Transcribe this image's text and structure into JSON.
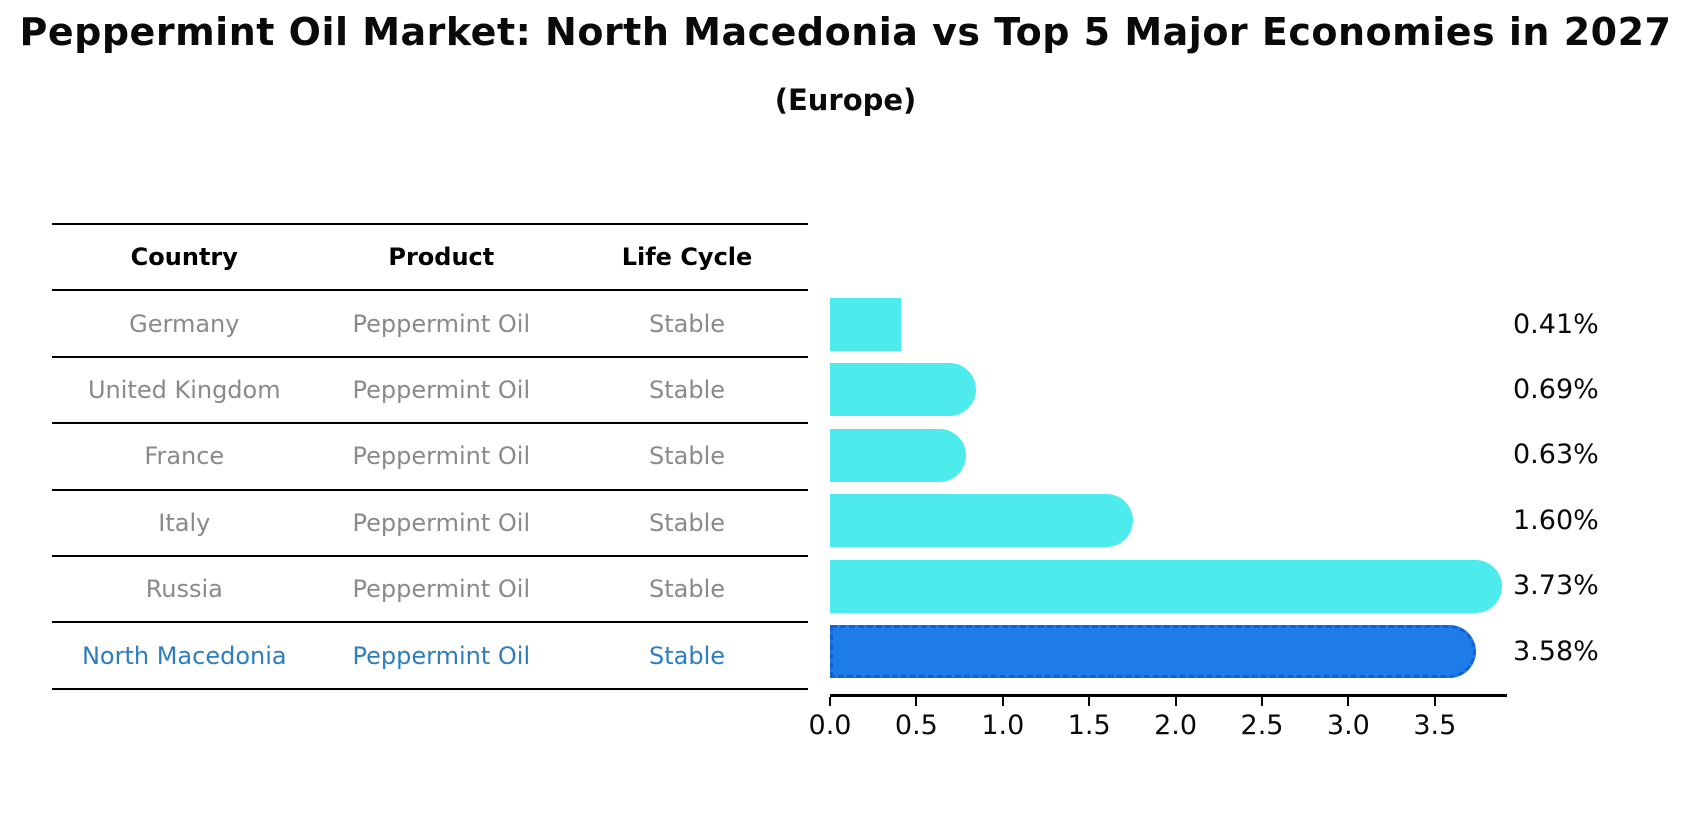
{
  "title": "Peppermint Oil Market: North Macedonia vs Top 5 Major Economies in 2027",
  "subtitle": "(Europe)",
  "table": {
    "headers": [
      "Country",
      "Product",
      "Life Cycle"
    ],
    "rows": [
      {
        "country": "Germany",
        "product": "Peppermint Oil",
        "life_cycle": "Stable",
        "highlight": false
      },
      {
        "country": "United Kingdom",
        "product": "Peppermint Oil",
        "life_cycle": "Stable",
        "highlight": false
      },
      {
        "country": "France",
        "product": "Peppermint Oil",
        "life_cycle": "Stable",
        "highlight": false
      },
      {
        "country": "Italy",
        "product": "Peppermint Oil",
        "life_cycle": "Stable",
        "highlight": false
      },
      {
        "country": "Russia",
        "product": "Peppermint Oil",
        "life_cycle": "Stable",
        "highlight": false
      },
      {
        "country": "North Macedonia",
        "product": "Peppermint Oil",
        "life_cycle": "Stable",
        "highlight": true
      }
    ]
  },
  "chart_data": {
    "type": "bar",
    "orientation": "horizontal",
    "title": "Peppermint Oil Market: North Macedonia vs Top 5 Major Economies in 2027",
    "subtitle": "(Europe)",
    "categories": [
      "Germany",
      "United Kingdom",
      "France",
      "Italy",
      "Russia",
      "North Macedonia"
    ],
    "values": [
      0.41,
      0.69,
      0.63,
      1.6,
      3.73,
      3.58
    ],
    "value_labels": [
      "0.41%",
      "0.69%",
      "0.63%",
      "1.60%",
      "3.73%",
      "3.58%"
    ],
    "x_tick_labels": [
      "0.0",
      "0.5",
      "1.0",
      "1.5",
      "2.0",
      "2.5",
      "3.0",
      "3.5"
    ],
    "xlim": [
      0,
      3.9
    ],
    "grid": false,
    "legend": null,
    "bar_color": "#4DEBEB",
    "highlight_bar_color": "#1E7CE8",
    "highlight_border_color": "#1161D2",
    "highlight_index": 5,
    "highlight_text_color": "#2E7EBF",
    "table_text_color": "#8A8A8A"
  }
}
